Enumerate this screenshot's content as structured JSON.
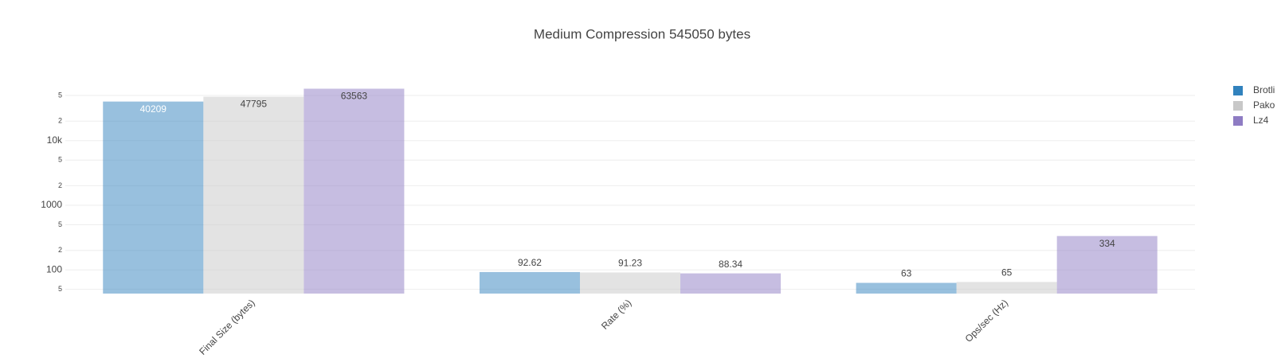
{
  "chart_data": {
    "type": "bar",
    "title": "Medium Compression 545050 bytes",
    "categories": [
      "Final Size (bytes)",
      "Rate (%)",
      "Ops/sec (Hz)"
    ],
    "series": [
      {
        "name": "Brotli",
        "color": "#3182bd",
        "values": [
          40209,
          92.62,
          63
        ]
      },
      {
        "name": "Pako",
        "color": "#c8c8c8",
        "values": [
          47795,
          91.23,
          65
        ]
      },
      {
        "name": "Lz4",
        "color": "#8e7cc3",
        "values": [
          63563,
          88.34,
          334
        ]
      }
    ],
    "log_y": true,
    "ylim": [
      43,
      98600
    ],
    "yticks": [
      {
        "value": 50,
        "label": "5"
      },
      100,
      {
        "value": 200,
        "label": "2"
      },
      {
        "value": 500,
        "label": "5"
      },
      1000,
      {
        "value": 2000,
        "label": "2"
      },
      {
        "value": 5000,
        "label": "5"
      },
      {
        "value": 10000,
        "label": "10k"
      },
      {
        "value": 20000,
        "label": "2"
      },
      {
        "value": 50000,
        "label": "5"
      }
    ],
    "grid": true,
    "legend": "top-right",
    "bar_opacity": 0.5
  }
}
